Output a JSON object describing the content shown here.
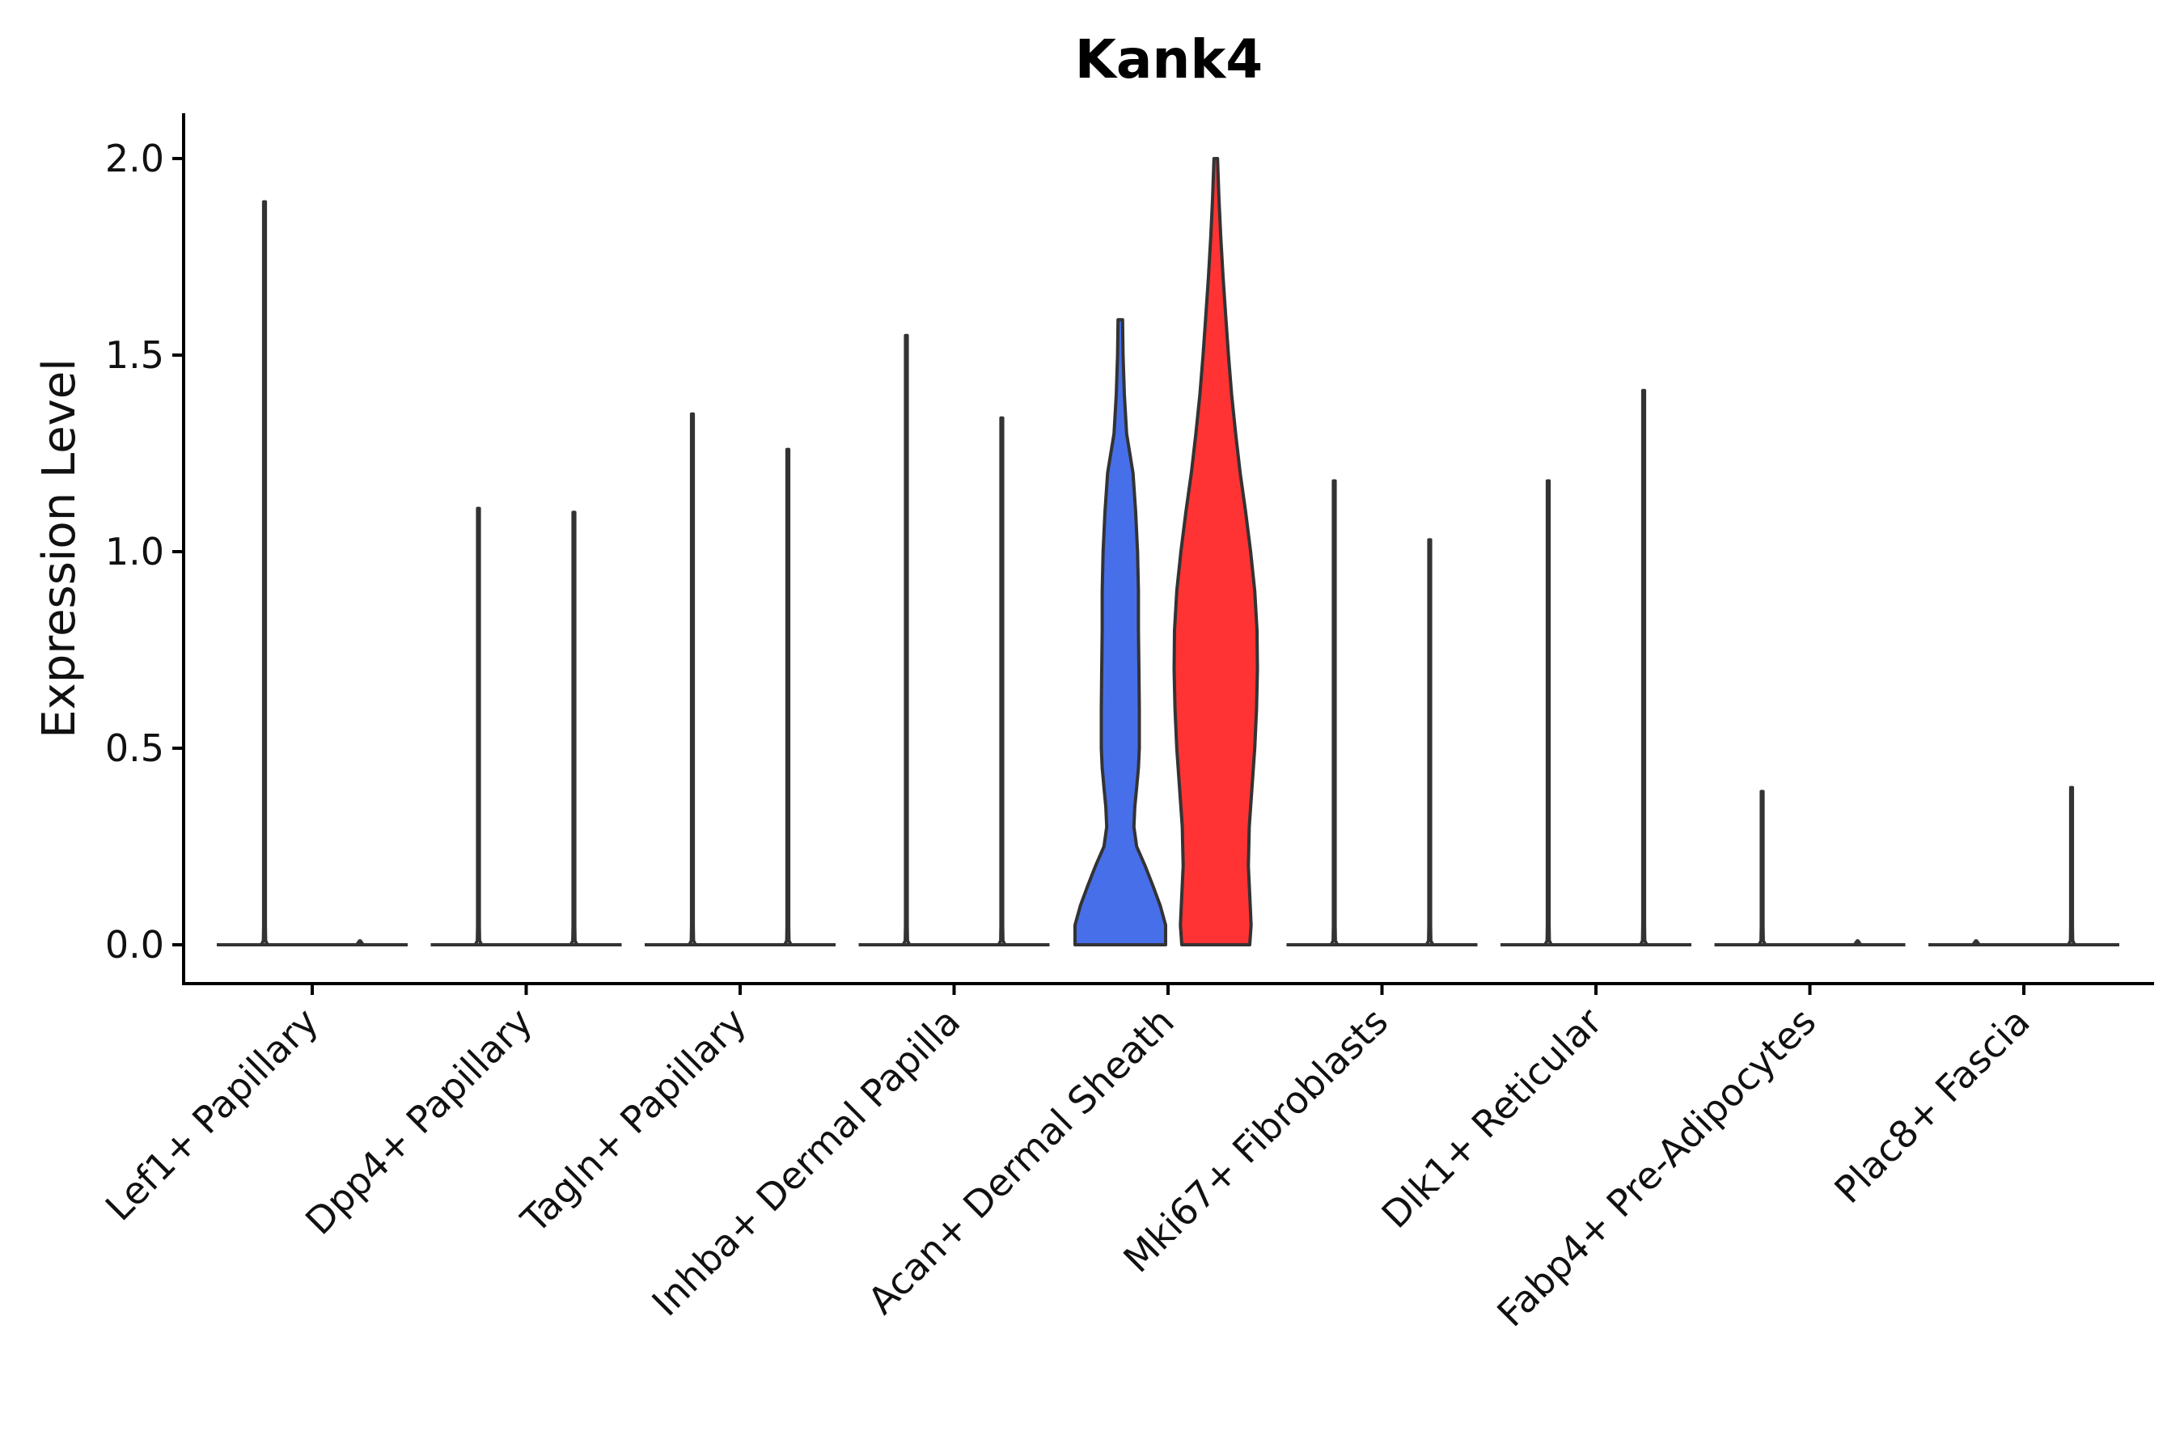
{
  "chart_data": {
    "type": "violin",
    "title": "Kank4",
    "ylabel": "Expression Level",
    "xlabel": "",
    "ylim": [
      -0.1,
      2.1
    ],
    "yticks": [
      0.0,
      0.5,
      1.0,
      1.5,
      2.0
    ],
    "ytick_labels": [
      "0.0",
      "0.5",
      "1.0",
      "1.5",
      "2.0"
    ],
    "grid": false,
    "legend": "none",
    "categories": [
      "Lef1+ Papillary",
      "Dpp4+ Papillary",
      "Tagln+ Papillary",
      "Inhba+ Dermal Papilla",
      "Acan+ Dermal Sheath",
      "Mki67+ Fibroblasts",
      "Dlk1+ Reticular",
      "Fabp4+ Pre-Adipocytes",
      "Plac8+ Fascia"
    ],
    "series": [
      {
        "group": "left",
        "colors": [
          "#ffffff",
          "#ffffff",
          "#ffffff",
          "#ffffff",
          "#476FEA",
          "#ffffff",
          "#ffffff",
          "#ffffff",
          "#ffffff"
        ],
        "max": [
          1.89,
          1.11,
          1.35,
          1.55,
          1.59,
          1.18,
          1.18,
          0.39,
          0.0
        ],
        "density": [
          null,
          null,
          null,
          null,
          [
            [
              0.0,
              1.0
            ],
            [
              0.05,
              1.0
            ],
            [
              0.1,
              0.88
            ],
            [
              0.15,
              0.72
            ],
            [
              0.2,
              0.55
            ],
            [
              0.25,
              0.36
            ],
            [
              0.3,
              0.3
            ],
            [
              0.35,
              0.32
            ],
            [
              0.4,
              0.36
            ],
            [
              0.45,
              0.4
            ],
            [
              0.5,
              0.42
            ],
            [
              0.6,
              0.42
            ],
            [
              0.7,
              0.41
            ],
            [
              0.8,
              0.4
            ],
            [
              0.9,
              0.4
            ],
            [
              1.0,
              0.38
            ],
            [
              1.1,
              0.34
            ],
            [
              1.2,
              0.28
            ],
            [
              1.3,
              0.14
            ],
            [
              1.4,
              0.09
            ],
            [
              1.5,
              0.06
            ],
            [
              1.59,
              0.05
            ]
          ],
          null,
          null,
          null,
          null
        ]
      },
      {
        "group": "right",
        "colors": [
          "#ffffff",
          "#ffffff",
          "#ffffff",
          "#ffffff",
          "#FF3333",
          "#ffffff",
          "#ffffff",
          "#ffffff",
          "#ffffff"
        ],
        "max": [
          0.0,
          1.1,
          1.26,
          1.34,
          2.0,
          1.03,
          1.41,
          0.0,
          0.4
        ],
        "density": [
          null,
          null,
          null,
          null,
          [
            [
              0.0,
              0.75
            ],
            [
              0.05,
              0.78
            ],
            [
              0.1,
              0.76
            ],
            [
              0.2,
              0.72
            ],
            [
              0.3,
              0.74
            ],
            [
              0.4,
              0.8
            ],
            [
              0.5,
              0.86
            ],
            [
              0.6,
              0.9
            ],
            [
              0.7,
              0.92
            ],
            [
              0.8,
              0.91
            ],
            [
              0.9,
              0.86
            ],
            [
              1.0,
              0.77
            ],
            [
              1.1,
              0.66
            ],
            [
              1.2,
              0.54
            ],
            [
              1.3,
              0.44
            ],
            [
              1.4,
              0.35
            ],
            [
              1.5,
              0.28
            ],
            [
              1.6,
              0.22
            ],
            [
              1.7,
              0.16
            ],
            [
              1.8,
              0.11
            ],
            [
              1.9,
              0.07
            ],
            [
              2.0,
              0.04
            ]
          ],
          null,
          null,
          null,
          null
        ]
      }
    ]
  }
}
